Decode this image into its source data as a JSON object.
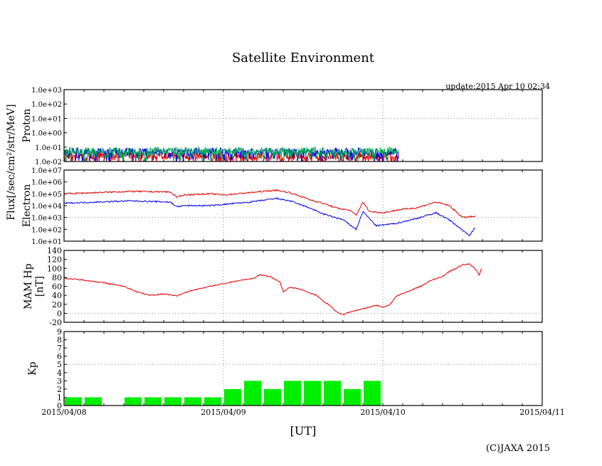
{
  "chart_data": {
    "type": "line",
    "title": "Satellite Environment",
    "update": "update:2015 Apr 10 02:34",
    "copyright": "(C)JAXA 2015",
    "xlabel": "[UT]",
    "x_ticks": [
      "2015/04/08",
      "2015/04/09",
      "2015/04/10",
      "2015/04/11"
    ],
    "x_unit": "hours since 2015/04/08 00:00 UT",
    "xlim": [
      0,
      72
    ],
    "flux_label": "Flux[/sec/cm²/str/MeV]",
    "panels": [
      {
        "name": "proton",
        "ylabel": "Proton",
        "scale": "log",
        "ylim_log10": [
          -2,
          3
        ],
        "y_ticks": [
          "1.0e-02",
          "1.0e-01",
          "1.0e+00",
          "1.0e+01",
          "1.0e+02",
          "1.0e+03"
        ],
        "series": [
          {
            "name": "proton-red",
            "color": "#e00000",
            "noisy": true,
            "x": [
              0,
              50.4
            ],
            "log10": [
              -1.6,
              -1.6
            ]
          },
          {
            "name": "proton-blue",
            "color": "#0000e0",
            "noisy": true,
            "x": [
              0,
              50.4
            ],
            "log10": [
              -1.3,
              -1.3
            ]
          },
          {
            "name": "proton-green",
            "color": "#00b050",
            "noisy": true,
            "x": [
              0,
              50.4
            ],
            "log10": [
              -1.25,
              -1.25
            ]
          }
        ]
      },
      {
        "name": "electron",
        "ylabel": "Electron",
        "scale": "log",
        "ylim_log10": [
          1,
          7
        ],
        "y_ticks": [
          "1.0e+01",
          "1.0e+02",
          "1.0e+03",
          "1.0e+04",
          "1.0e+05",
          "1.0e+06",
          "1.0e+07"
        ],
        "series": [
          {
            "name": "electron-red",
            "color": "#e00000",
            "x": [
              0,
              10,
              16,
              17,
              18,
              22,
              24,
              28,
              32,
              34,
              37,
              39,
              41,
              43,
              44,
              45,
              46,
              48,
              51,
              53,
              56,
              58,
              60,
              62
            ],
            "log10": [
              5.0,
              5.2,
              5.15,
              4.7,
              4.9,
              5.0,
              4.9,
              5.1,
              5.3,
              5.1,
              4.5,
              4.2,
              3.8,
              3.6,
              3.2,
              4.3,
              3.5,
              3.4,
              3.7,
              3.8,
              4.3,
              4.0,
              3.0,
              3.1
            ]
          },
          {
            "name": "electron-blue",
            "color": "#0000e0",
            "x": [
              0,
              10,
              16,
              17,
              18,
              22,
              24,
              28,
              32,
              34,
              37,
              39,
              42,
              44,
              45,
              47,
              50,
              53,
              56,
              58,
              61,
              62
            ],
            "log10": [
              4.2,
              4.4,
              4.3,
              3.9,
              4.0,
              4.0,
              4.1,
              4.3,
              4.6,
              4.4,
              3.8,
              3.3,
              2.8,
              2.0,
              3.5,
              2.3,
              2.5,
              2.9,
              3.4,
              2.8,
              1.5,
              2.2
            ]
          }
        ]
      },
      {
        "name": "hp",
        "ylabel": "MAM Hp",
        "ylabel2": "[nT]",
        "scale": "linear",
        "ylim": [
          -20,
          140
        ],
        "y_ticks": [
          "-20",
          "0",
          "20",
          "40",
          "60",
          "80",
          "100",
          "120",
          "140"
        ],
        "series": [
          {
            "name": "hp-red",
            "color": "#e00000",
            "x": [
              0,
              3,
              6,
              9,
              11,
              13,
              15,
              17,
              19,
              22,
              24,
              26,
              27,
              28.5,
              29.5,
              31,
              32.5,
              33,
              34,
              35,
              36,
              37,
              38,
              39,
              40,
              41,
              42,
              43,
              45,
              47,
              48,
              49,
              50,
              52,
              54,
              55,
              56,
              57,
              58,
              59,
              60,
              61,
              62,
              62.5,
              63
            ],
            "y": [
              78,
              74,
              68,
              60,
              48,
              40,
              43,
              39,
              50,
              60,
              66,
              72,
              75,
              77,
              86,
              82,
              70,
              48,
              58,
              55,
              52,
              45,
              40,
              27,
              18,
              3,
              -3,
              3,
              10,
              18,
              14,
              18,
              38,
              50,
              62,
              72,
              77,
              82,
              93,
              100,
              108,
              110,
              98,
              86,
              104
            ]
          }
        ]
      },
      {
        "name": "kp",
        "ylabel": "Kp",
        "scale": "linear",
        "ylim": [
          0,
          9
        ],
        "y_ticks": [
          "0",
          "1",
          "2",
          "3",
          "4",
          "5",
          "6",
          "7",
          "8",
          "9"
        ],
        "bar_color": "#00ee00",
        "bar_hours": 3,
        "bars": [
          1,
          1,
          0,
          1,
          1,
          1,
          1,
          1,
          2,
          3,
          2,
          3,
          3,
          3,
          2,
          3
        ]
      }
    ]
  }
}
